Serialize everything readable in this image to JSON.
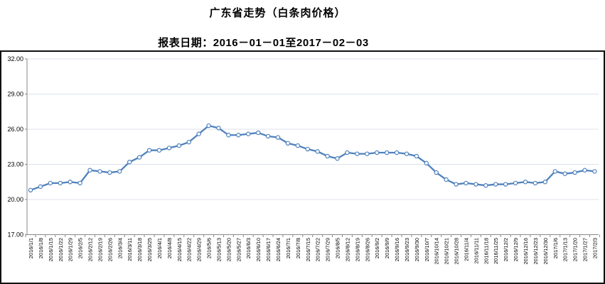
{
  "header": {
    "title": "广东省走势（白条肉价格）",
    "subtitle": "报表日期：2016－01－01至2017－02－03"
  },
  "chart_data": {
    "type": "line",
    "title": "广东省走势（白条肉价格）",
    "xlabel": "",
    "ylabel": "",
    "ylim": [
      17,
      32
    ],
    "y_tick_labels": [
      "17.00",
      "20.00",
      "23.00",
      "26.00",
      "29.00",
      "32.00"
    ],
    "y_tick_values": [
      17,
      20,
      23,
      26,
      29,
      32
    ],
    "grid": true,
    "legend_position": "none",
    "marker_style": "hollow-circle",
    "line_color": "#4f81bd",
    "gridline_color": "#dce3ee",
    "axis_color": "#8a8a8a",
    "categories": [
      "2016/1/1",
      "2016/1/8",
      "2016/1/15",
      "2016/1/22",
      "2016/1/29",
      "2016/2/5",
      "2016/2/12",
      "2016/2/19",
      "2016/2/26",
      "2016/3/4",
      "2016/3/11",
      "2016/3/18",
      "2016/3/25",
      "2016/4/1",
      "2016/4/8",
      "2016/4/15",
      "2016/4/22",
      "2016/4/29",
      "2016/5/6",
      "2016/5/13",
      "2016/5/20",
      "2016/5/27",
      "2016/6/3",
      "2016/6/10",
      "2016/6/17",
      "2016/6/24",
      "2016/7/1",
      "2016/7/8",
      "2016/7/15",
      "2016/7/22",
      "2016/7/29",
      "2016/8/5",
      "2016/8/12",
      "2016/8/19",
      "2016/8/26",
      "2016/9/2",
      "2016/9/9",
      "2016/9/16",
      "2016/9/23",
      "2016/9/30",
      "2016/10/7",
      "2016/10/14",
      "2016/10/21",
      "2016/10/28",
      "2016/11/4",
      "2016/11/11",
      "2016/11/18",
      "2016/11/25",
      "2016/12/2",
      "2016/12/9",
      "2016/12/16",
      "2016/12/23",
      "2016/12/30",
      "2017/1/6",
      "2017/1/13",
      "2017/1/20",
      "2017/1/27",
      "2017/2/3"
    ],
    "series": [
      {
        "name": "白条肉价格",
        "values": [
          20.8,
          21.1,
          21.4,
          21.4,
          21.5,
          21.4,
          22.5,
          22.4,
          22.3,
          22.4,
          23.2,
          23.6,
          24.2,
          24.2,
          24.4,
          24.6,
          24.9,
          25.6,
          26.3,
          26.1,
          25.5,
          25.5,
          25.6,
          25.7,
          25.4,
          25.3,
          24.8,
          24.6,
          24.3,
          24.1,
          23.7,
          23.5,
          24.0,
          23.9,
          23.9,
          24.0,
          24.0,
          24.0,
          23.9,
          23.7,
          23.1,
          22.3,
          21.7,
          21.3,
          21.4,
          21.3,
          21.2,
          21.3,
          21.3,
          21.4,
          21.5,
          21.4,
          21.5,
          22.4,
          22.2,
          22.3,
          22.5,
          22.4
        ]
      }
    ]
  }
}
